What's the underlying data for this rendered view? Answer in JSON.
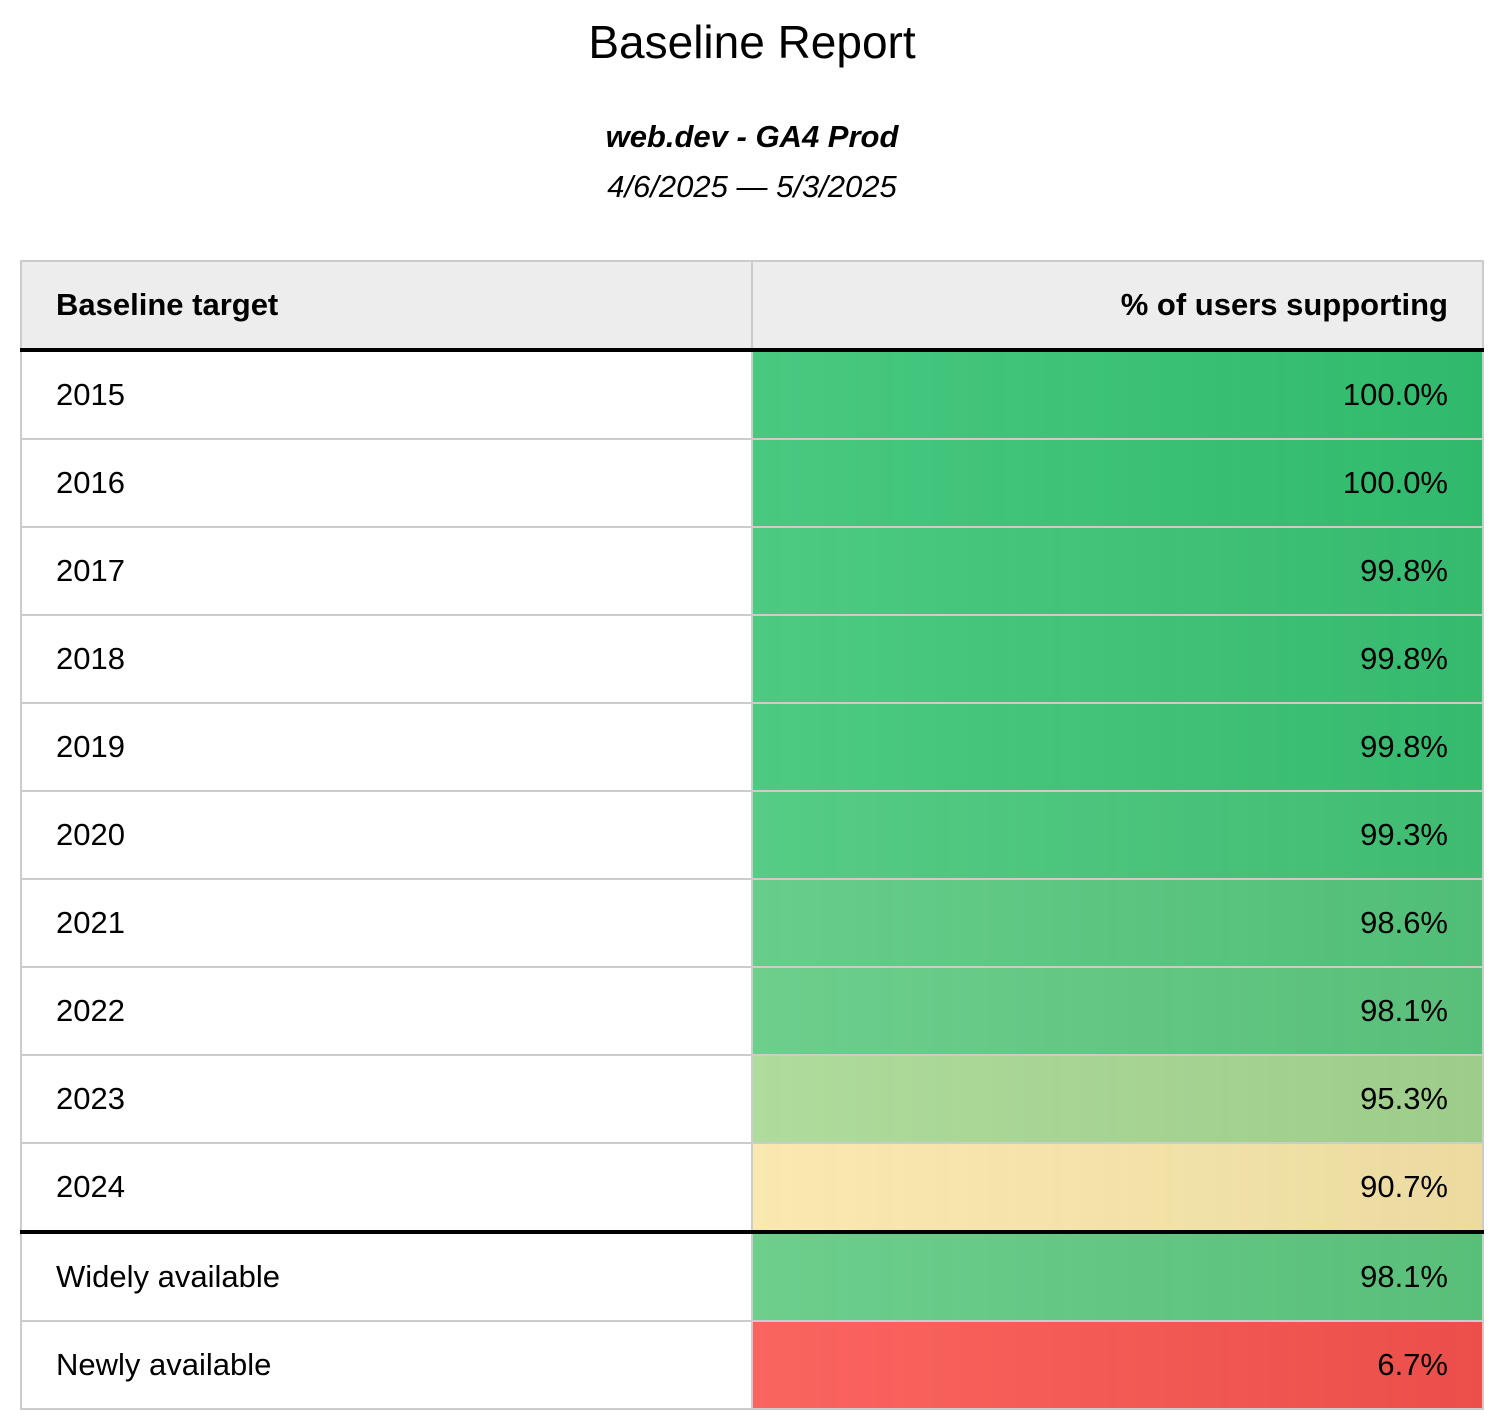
{
  "report": {
    "title": "Baseline Report",
    "property": "web.dev - GA4 Prod",
    "date_range": "4/6/2025 — 5/3/2025"
  },
  "table": {
    "columns": [
      "Baseline target",
      "% of users supporting"
    ],
    "rows": [
      {
        "target": "2015",
        "pct": "100.0%",
        "color": "#33c372",
        "group": "year",
        "divider_after": false
      },
      {
        "target": "2016",
        "pct": "100.0%",
        "color": "#33c372",
        "group": "year",
        "divider_after": false
      },
      {
        "target": "2017",
        "pct": "99.8%",
        "color": "#38c474",
        "group": "year",
        "divider_after": false
      },
      {
        "target": "2018",
        "pct": "99.8%",
        "color": "#38c474",
        "group": "year",
        "divider_after": false
      },
      {
        "target": "2019",
        "pct": "99.8%",
        "color": "#38c474",
        "group": "year",
        "divider_after": false
      },
      {
        "target": "2020",
        "pct": "99.3%",
        "color": "#43c678",
        "group": "year",
        "divider_after": false
      },
      {
        "target": "2021",
        "pct": "98.6%",
        "color": "#55c87d",
        "group": "year",
        "divider_after": false
      },
      {
        "target": "2022",
        "pct": "98.1%",
        "color": "#5dc980",
        "group": "year",
        "divider_after": false
      },
      {
        "target": "2023",
        "pct": "95.3%",
        "color": "#a6d791",
        "group": "year",
        "divider_after": false
      },
      {
        "target": "2024",
        "pct": "90.7%",
        "color": "#f8e7a8",
        "group": "year",
        "divider_after": true
      },
      {
        "target": "Widely available",
        "pct": "98.1%",
        "color": "#5dc980",
        "group": "summary",
        "divider_after": false
      },
      {
        "target": "Newly available",
        "pct": "6.7%",
        "color": "#f9534e",
        "group": "summary",
        "divider_after": false
      }
    ]
  },
  "chart_data": {
    "type": "table",
    "title": "Baseline Report",
    "subtitle": "web.dev - GA4 Prod",
    "date_range": "4/6/2025 — 5/3/2025",
    "columns": [
      "Baseline target",
      "% of users supporting"
    ],
    "categories": [
      "2015",
      "2016",
      "2017",
      "2018",
      "2019",
      "2020",
      "2021",
      "2022",
      "2023",
      "2024",
      "Widely available",
      "Newly available"
    ],
    "values": [
      100.0,
      100.0,
      99.8,
      99.8,
      99.8,
      99.3,
      98.6,
      98.1,
      95.3,
      90.7,
      98.1,
      6.7
    ],
    "value_unit": "%",
    "layout": "conditional-formatting green-yellow-red scale, percentages right-aligned, thick black rules under header and under 2024 row",
    "cell_colors": [
      "#33c372",
      "#33c372",
      "#38c474",
      "#38c474",
      "#38c474",
      "#43c678",
      "#55c87d",
      "#5dc980",
      "#a6d791",
      "#f8e7a8",
      "#5dc980",
      "#f9534e"
    ]
  }
}
